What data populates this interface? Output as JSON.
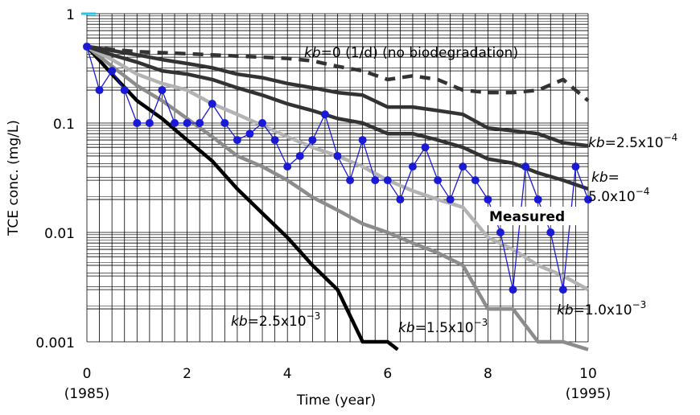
{
  "chart_data": {
    "type": "line",
    "title": "",
    "xlabel": "Time (year)",
    "ylabel": "TCE conc. (mg/L)",
    "yscale": "log",
    "xlim": [
      0,
      10
    ],
    "ylim": [
      0.001,
      1
    ],
    "grid": true,
    "x_ticks": [
      "0",
      "2",
      "4",
      "6",
      "8",
      "10"
    ],
    "x_subticks": [
      {
        "x": 0,
        "label": "(1985)"
      },
      {
        "x": 10,
        "label": "(1995)"
      }
    ],
    "y_ticks": [
      {
        "value": 1,
        "label": "1"
      },
      {
        "value": 0.1,
        "label": "0.1"
      },
      {
        "value": 0.01,
        "label": "0.01"
      },
      {
        "value": 0.001,
        "label": "0.001"
      }
    ],
    "series": [
      {
        "name": "kb=0 (1/d) (no biodegradation)",
        "style": "dashed",
        "color": "#333333",
        "x": [
          0,
          0.5,
          1,
          1.5,
          2,
          2.5,
          3,
          3.5,
          4,
          4.5,
          5,
          5.5,
          6,
          6.5,
          7,
          7.5,
          8,
          8.5,
          9,
          9.5,
          10
        ],
        "y": [
          0.5,
          0.47,
          0.45,
          0.44,
          0.43,
          0.42,
          0.41,
          0.4,
          0.39,
          0.37,
          0.33,
          0.3,
          0.25,
          0.27,
          0.25,
          0.2,
          0.19,
          0.19,
          0.2,
          0.25,
          0.16
        ]
      },
      {
        "name": "kb=2.5x10^-4",
        "style": "solid",
        "color": "#333333",
        "x": [
          0,
          0.5,
          1,
          1.5,
          2,
          2.5,
          3,
          3.5,
          4,
          4.5,
          5,
          5.5,
          6,
          6.5,
          7,
          7.5,
          8,
          8.5,
          9,
          9.5,
          10
        ],
        "y": [
          0.5,
          0.46,
          0.42,
          0.38,
          0.35,
          0.32,
          0.28,
          0.26,
          0.23,
          0.21,
          0.19,
          0.18,
          0.14,
          0.14,
          0.13,
          0.12,
          0.09,
          0.085,
          0.08,
          0.066,
          0.062
        ]
      },
      {
        "name": "kb=5.0x10^-4",
        "style": "solid",
        "color": "#333333",
        "x": [
          0,
          0.5,
          1,
          1.5,
          2,
          2.5,
          3,
          3.5,
          4,
          4.5,
          5,
          5.5,
          6,
          6.5,
          7,
          7.5,
          8,
          8.5,
          9,
          9.5,
          10
        ],
        "y": [
          0.5,
          0.42,
          0.36,
          0.3,
          0.28,
          0.25,
          0.21,
          0.18,
          0.15,
          0.13,
          0.11,
          0.1,
          0.08,
          0.08,
          0.07,
          0.06,
          0.047,
          0.043,
          0.035,
          0.03,
          0.025
        ]
      },
      {
        "name": "kb=1.0x10^-3",
        "style": "solid",
        "color": "#b3b3b3",
        "x": [
          0,
          0.5,
          1,
          1.5,
          2,
          2.5,
          3,
          3.5,
          4,
          4.5,
          5,
          5.5,
          6,
          6.5,
          7,
          7.5,
          8,
          8.5,
          9,
          9.5,
          10
        ],
        "y": [
          0.5,
          0.38,
          0.28,
          0.23,
          0.2,
          0.15,
          0.12,
          0.095,
          0.075,
          0.06,
          0.05,
          0.04,
          0.03,
          0.024,
          0.02,
          0.017,
          0.009,
          0.007,
          0.005,
          0.004,
          0.003
        ]
      },
      {
        "name": "kb=1.5x10^-3",
        "style": "solid",
        "color": "#8c8c8c",
        "x": [
          0,
          0.5,
          1,
          1.5,
          2,
          2.5,
          3,
          3.5,
          4,
          4.5,
          5,
          5.5,
          6,
          6.5,
          7,
          7.5,
          8,
          8.5,
          9,
          9.5,
          10
        ],
        "y": [
          0.5,
          0.33,
          0.22,
          0.16,
          0.11,
          0.075,
          0.05,
          0.04,
          0.03,
          0.021,
          0.016,
          0.012,
          0.01,
          0.008,
          0.0065,
          0.005,
          0.002,
          0.002,
          0.001,
          0.001,
          0.00085
        ]
      },
      {
        "name": "kb=2.5x10^-3",
        "style": "solid",
        "color": "#000000",
        "x": [
          0,
          0.5,
          1,
          1.5,
          2,
          2.5,
          3,
          3.5,
          4,
          4.5,
          5,
          5.5,
          6,
          6.2
        ],
        "y": [
          0.5,
          0.28,
          0.16,
          0.11,
          0.07,
          0.045,
          0.025,
          0.015,
          0.009,
          0.005,
          0.003,
          0.001,
          0.001,
          0.00085
        ]
      },
      {
        "name": "Measured",
        "style": "marker-line",
        "color": "#1a1ad6",
        "x": [
          0,
          0.25,
          0.5,
          0.75,
          1,
          1.25,
          1.5,
          1.75,
          2,
          2.25,
          2.5,
          2.75,
          3,
          3.25,
          3.5,
          3.75,
          4,
          4.25,
          4.5,
          4.75,
          5,
          5.25,
          5.5,
          5.75,
          6,
          6.25,
          6.5,
          6.75,
          7,
          7.25,
          7.5,
          7.75,
          8,
          8.25,
          8.5,
          8.75,
          9,
          9.25,
          9.5,
          9.75,
          10
        ],
        "y": [
          0.5,
          0.2,
          0.3,
          0.2,
          0.1,
          0.1,
          0.2,
          0.1,
          0.1,
          0.1,
          0.15,
          0.1,
          0.07,
          0.08,
          0.1,
          0.07,
          0.04,
          0.05,
          0.07,
          0.12,
          0.05,
          0.03,
          0.07,
          0.03,
          0.03,
          0.02,
          0.04,
          0.06,
          0.03,
          0.02,
          0.04,
          0.03,
          0.02,
          0.01,
          0.003,
          0.04,
          0.02,
          0.01,
          0.003,
          0.04,
          0.02
        ]
      }
    ],
    "annotations": [
      {
        "parts": [
          {
            "t": "kb",
            "i": true
          },
          {
            "t": "=0 (1/d) (no biodegradation)"
          }
        ]
      },
      {
        "parts": [
          {
            "t": "kb",
            "i": true
          },
          {
            "t": "=2.5x10"
          },
          {
            "t": "−4",
            "sup": true
          }
        ]
      },
      {
        "parts": [
          {
            "t": "kb",
            "i": true
          },
          {
            "t": "="
          }
        ]
      },
      {
        "parts": [
          {
            "t": "5.0x10"
          },
          {
            "t": "−4",
            "sup": true
          }
        ]
      },
      {
        "parts": [
          {
            "t": "Measured"
          }
        ],
        "color": "#1a1ad6",
        "bold": true
      },
      {
        "parts": [
          {
            "t": "kb",
            "i": true
          },
          {
            "t": "=1.0x10"
          },
          {
            "t": "−3",
            "sup": true
          }
        ]
      },
      {
        "parts": [
          {
            "t": "kb",
            "i": true
          },
          {
            "t": "=2.5x10"
          },
          {
            "t": "−3",
            "sup": true
          }
        ]
      },
      {
        "parts": [
          {
            "t": "kb",
            "i": true
          },
          {
            "t": "=1.5x10"
          },
          {
            "t": "−3",
            "sup": true
          }
        ]
      }
    ]
  }
}
